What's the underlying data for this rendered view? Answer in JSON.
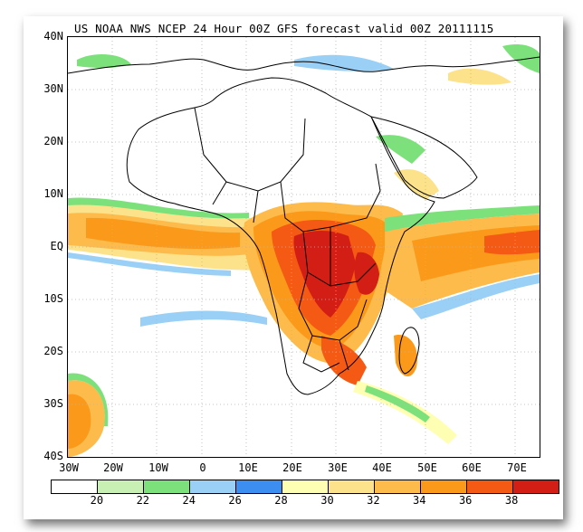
{
  "title": "US NOAA NWS NCEP 24 Hour 00Z GFS forecast valid 00Z 20111115",
  "lat_labels": [
    "40N",
    "30N",
    "20N",
    "10N",
    "EQ",
    "10S",
    "20S",
    "30S",
    "40S"
  ],
  "lon_labels": [
    "30W",
    "20W",
    "10W",
    "0",
    "10E",
    "20E",
    "30E",
    "40E",
    "50E",
    "60E",
    "70E"
  ],
  "colorbar": {
    "colors": [
      "#ffffff",
      "#c8f0b4",
      "#7ce17a",
      "#9ad0f5",
      "#3c8ff0",
      "#ffffb4",
      "#fde28c",
      "#fdbb4c",
      "#fb9a1a",
      "#f55a14",
      "#d21e14"
    ],
    "labels": [
      "20",
      "22",
      "24",
      "26",
      "28",
      "30",
      "32",
      "34",
      "36",
      "38"
    ]
  },
  "colors": {
    "coast": "#000000",
    "grid": "#b4b4b4"
  }
}
